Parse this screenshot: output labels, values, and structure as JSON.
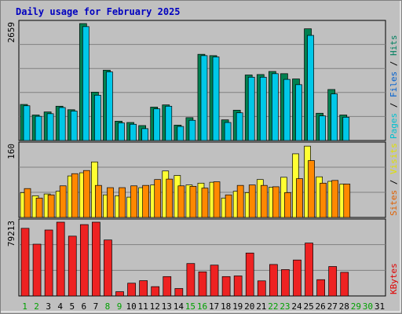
{
  "page": {
    "title": "Daily usage for February 2025"
  },
  "chart_data": [
    {
      "type": "bar",
      "panel": "hits-files-pages",
      "ymax_label": "2659",
      "ylim": [
        0,
        2659
      ],
      "legend_words": [
        {
          "text": "Pages",
          "color": "#00c0d0"
        },
        {
          "text": " / ",
          "color": "#000000"
        },
        {
          "text": "Files",
          "color": "#0060d0"
        },
        {
          "text": " / ",
          "color": "#000000"
        },
        {
          "text": "Hits",
          "color": "#008060"
        }
      ],
      "series": [
        {
          "name": "Hits",
          "color": "#008050",
          "values": [
            820,
            580,
            650,
            780,
            700,
            2659,
            1100,
            1600,
            440,
            410,
            340,
            760,
            810,
            350,
            520,
            1960,
            1930,
            470,
            690,
            1490,
            1500,
            1570,
            1520,
            1400,
            2540,
            620,
            1160,
            580,
            null,
            null,
            null
          ]
        },
        {
          "name": "Files",
          "color": "#0040c0",
          "values": [
            600,
            380,
            420,
            580,
            480,
            1450,
            900,
            1100,
            250,
            240,
            170,
            380,
            420,
            200,
            320,
            650,
            640,
            280,
            500,
            620,
            560,
            560,
            500,
            440,
            680,
            390,
            420,
            350,
            null,
            null,
            null
          ]
        },
        {
          "name": "Pages",
          "color": "#00c8e8",
          "values": [
            790,
            550,
            610,
            750,
            670,
            2590,
            1030,
            1560,
            400,
            370,
            270,
            720,
            780,
            320,
            460,
            1930,
            1900,
            410,
            630,
            1440,
            1440,
            1520,
            1390,
            1270,
            2390,
            560,
            1060,
            530,
            null,
            null,
            null
          ]
        }
      ]
    },
    {
      "type": "bar",
      "panel": "visits-sites",
      "ymax_label": "160",
      "ylim": [
        0,
        160
      ],
      "legend_words": [
        {
          "text": "Sites",
          "color": "#e06000"
        },
        {
          "text": " / ",
          "color": "#000000"
        },
        {
          "text": "Visits",
          "color": "#e0e000"
        }
      ],
      "series": [
        {
          "name": "Visits",
          "color": "#ffff33",
          "values": [
            55,
            48,
            52,
            58,
            92,
            99,
            123,
            50,
            48,
            45,
            66,
            72,
            103,
            93,
            72,
            76,
            78,
            43,
            58,
            55,
            84,
            67,
            89,
            141,
            158,
            90,
            80,
            74,
            null,
            null,
            null
          ]
        },
        {
          "name": "Sites",
          "color": "#ff8800",
          "values": [
            64,
            43,
            50,
            70,
            97,
            104,
            71,
            66,
            66,
            70,
            71,
            84,
            85,
            70,
            69,
            65,
            79,
            50,
            71,
            72,
            71,
            68,
            55,
            86,
            126,
            76,
            82,
            74,
            null,
            null,
            null
          ]
        }
      ]
    },
    {
      "type": "bar",
      "panel": "kbytes",
      "ymax_label": "79213",
      "ylim": [
        0,
        79213
      ],
      "legend_words": [
        {
          "text": "KBytes",
          "color": "#e00000"
        }
      ],
      "series": [
        {
          "name": "KBytes",
          "color": "#ee2222",
          "values": [
            72600,
            55600,
            70800,
            79213,
            64200,
            76600,
            79213,
            60100,
            4600,
            13700,
            16400,
            10000,
            20800,
            8000,
            34800,
            25900,
            33100,
            20800,
            21500,
            46100,
            16200,
            33800,
            28300,
            38600,
            56800,
            17500,
            31600,
            25400,
            null,
            null,
            null
          ]
        }
      ]
    }
  ],
  "x_axis": {
    "days": [
      "1",
      "2",
      "3",
      "4",
      "5",
      "6",
      "7",
      "8",
      "9",
      "10",
      "11",
      "12",
      "13",
      "14",
      "15",
      "16",
      "17",
      "18",
      "19",
      "20",
      "21",
      "22",
      "23",
      "24",
      "25",
      "26",
      "27",
      "28",
      "29",
      "30",
      "31"
    ],
    "weekend_days": [
      1,
      2,
      8,
      9,
      15,
      16,
      22,
      23,
      29,
      30
    ],
    "weekend_color": "#00a000",
    "weekday_color": "#000000"
  }
}
